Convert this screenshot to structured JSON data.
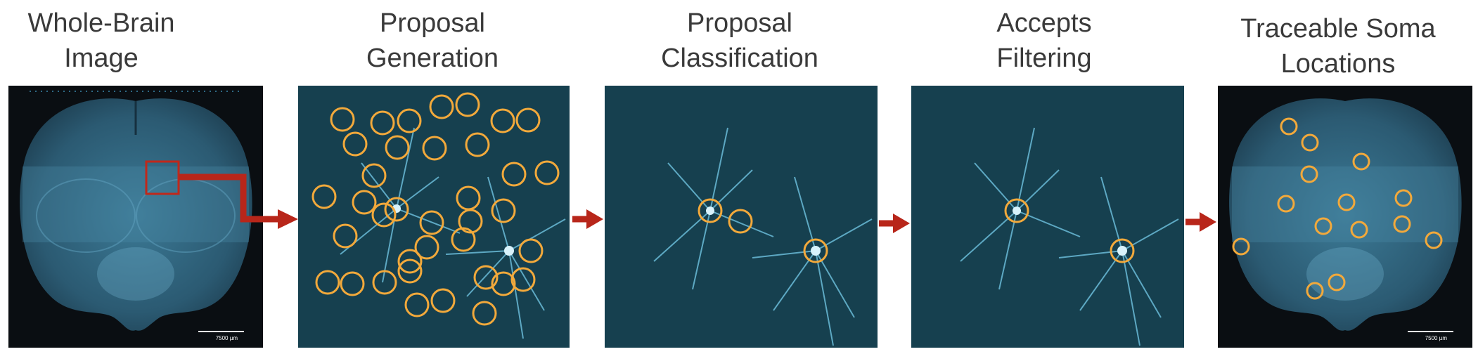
{
  "figure": {
    "stages": [
      {
        "title_line1": "Whole-Brain",
        "title_line2": "Image"
      },
      {
        "title_line1": "Proposal",
        "title_line2": "Generation"
      },
      {
        "title_line1": "Proposal",
        "title_line2": "Classification"
      },
      {
        "title_line1": "Accepts",
        "title_line2": "Filtering"
      },
      {
        "title_line1": "Traceable Soma",
        "title_line2": "Locations"
      }
    ],
    "scale_bar_label": "7500 µm",
    "colors": {
      "tissue": "#2f5f77",
      "background": "#0b1820",
      "circle": "#f2a93b",
      "roi_box": "#c0281b",
      "arrow": "#b8261a",
      "title_text": "#3a3a3a"
    },
    "counts": {
      "proposals": 33,
      "classified_accepts": 3,
      "filtered_accepts": 2,
      "traceable_somas": 13
    }
  }
}
